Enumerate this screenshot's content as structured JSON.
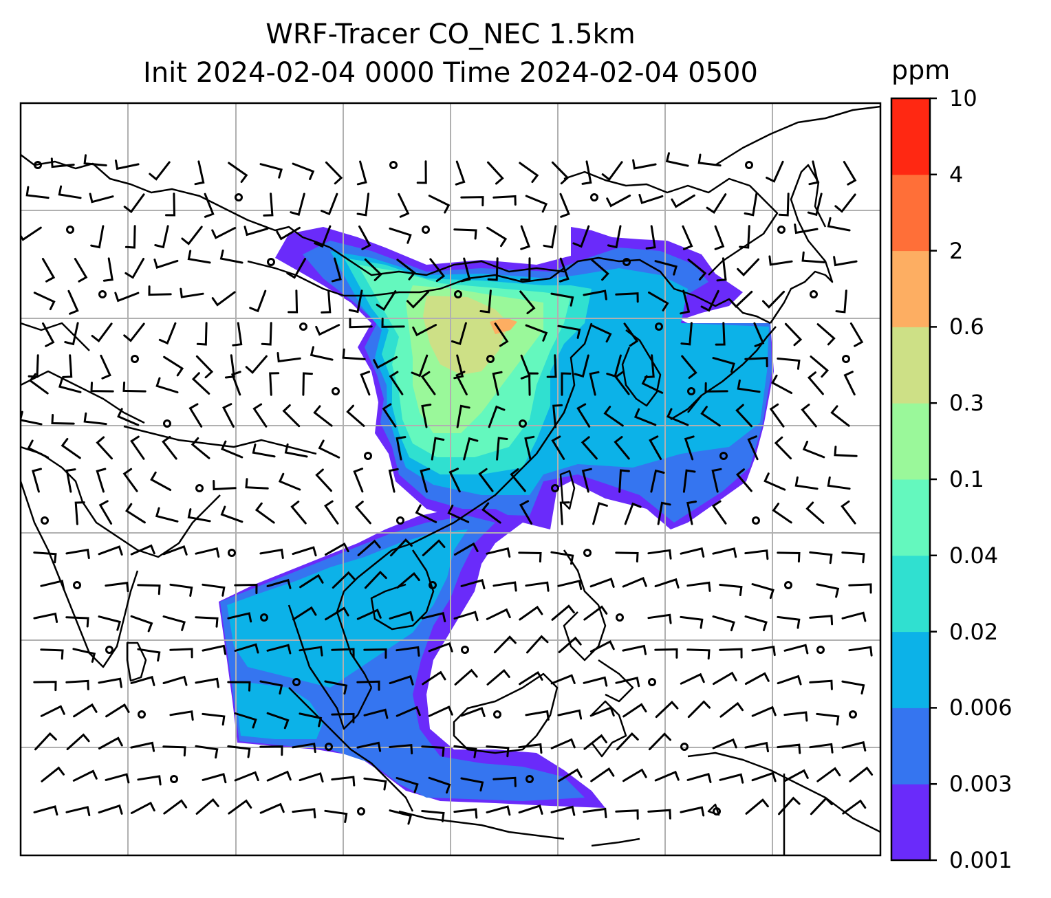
{
  "title": {
    "line1": "WRF-Tracer CO_NEC 1.5km",
    "line2": "Init 2024-02-04 0000 Time 2024-02-04 0500"
  },
  "colorbar": {
    "unit": "ppm",
    "ticks": [
      "0.001",
      "0.003",
      "0.006",
      "0.02",
      "0.04",
      "0.1",
      "0.3",
      "0.6",
      "2",
      "4",
      "10"
    ],
    "colors": [
      "#6a2bfa",
      "#3575f0",
      "#0cb2e8",
      "#30e0d0",
      "#64f8be",
      "#9af89a",
      "#cde086",
      "#fdae62",
      "#ff6f38",
      "#ff2812"
    ]
  },
  "map": {
    "gridlines": true,
    "land_outline_color": "#000000",
    "grid_color": "#b0b0b0",
    "plume_regions": [
      {
        "name": "northern-plume",
        "level": 2
      },
      {
        "name": "central-plume",
        "level": 5
      },
      {
        "name": "korea-japan-plume",
        "level": 2
      },
      {
        "name": "southern-plume",
        "level": 1
      }
    ],
    "wind_barbs": true
  }
}
